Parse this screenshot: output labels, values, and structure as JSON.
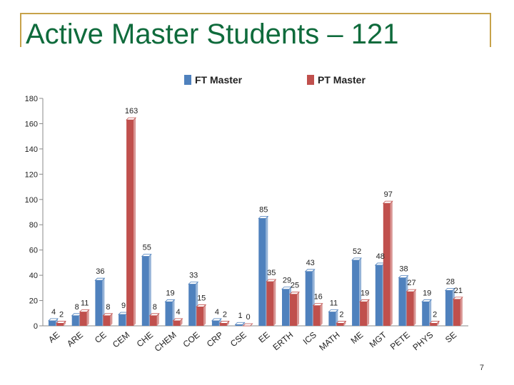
{
  "slide": {
    "title": "Active Master Students – 121",
    "page_number": "7"
  },
  "colors": {
    "ft": "#4f81bd",
    "pt": "#c0504d",
    "title": "#0f6b3c",
    "frame": "#c7a24a"
  },
  "chart_data": {
    "type": "bar",
    "categories": [
      "AE",
      "ARE",
      "CE",
      "CEM",
      "CHE",
      "CHEM",
      "COE",
      "CRP",
      "CSE",
      "EE",
      "ERTH",
      "ICS",
      "MATH",
      "ME",
      "MGT",
      "PETE",
      "PHYS",
      "SE"
    ],
    "series": [
      {
        "name": "FT Master",
        "values": [
          4,
          8,
          36,
          9,
          55,
          19,
          33,
          4,
          1,
          85,
          29,
          43,
          11,
          52,
          48,
          38,
          19,
          28
        ]
      },
      {
        "name": "PT Master",
        "values": [
          2,
          11,
          8,
          163,
          8,
          4,
          15,
          2,
          0,
          35,
          25,
          16,
          2,
          19,
          97,
          27,
          2,
          21
        ]
      }
    ],
    "y_ticks": [
      0,
      20,
      40,
      60,
      80,
      100,
      120,
      140,
      160,
      180
    ],
    "ylim": [
      0,
      180
    ],
    "legend_position": "top",
    "grid": false
  }
}
